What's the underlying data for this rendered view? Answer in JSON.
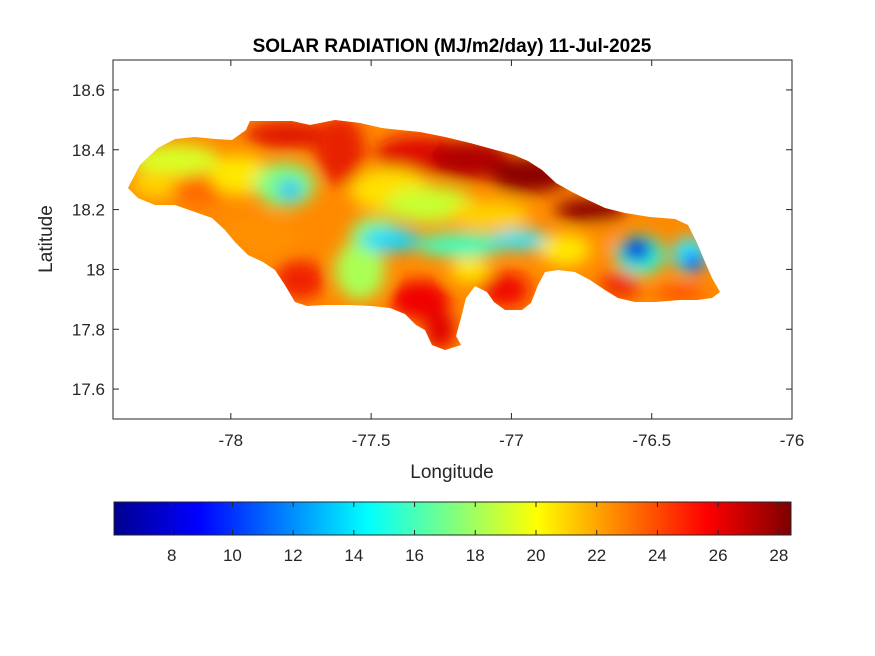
{
  "chart_data": {
    "type": "heatmap",
    "title": "SOLAR RADIATION (MJ/m2/day) 11-Jul-2025",
    "xlabel": "Longitude",
    "ylabel": "Latitude",
    "xlim": [
      -78.42,
      -76.0
    ],
    "ylim": [
      17.5,
      18.7
    ],
    "x_ticks": [
      -78,
      -77.5,
      -77,
      -76.5,
      -76
    ],
    "y_ticks": [
      17.6,
      17.8,
      18,
      18.2,
      18.4,
      18.6
    ],
    "x_tick_labels": [
      "-78",
      "-77.5",
      "-77",
      "-76.5",
      "-76"
    ],
    "y_tick_labels": [
      "17.6",
      "17.8",
      "18",
      "18.2",
      "18.4",
      "18.6"
    ],
    "colorbar": {
      "colormap": "jet",
      "range": [
        6.1,
        28.4
      ],
      "ticks": [
        8,
        10,
        12,
        14,
        16,
        18,
        20,
        22,
        24,
        26,
        28
      ],
      "tick_labels": [
        "8",
        "10",
        "12",
        "14",
        "16",
        "18",
        "20",
        "22",
        "24",
        "26",
        "28"
      ]
    },
    "grid": false
  }
}
